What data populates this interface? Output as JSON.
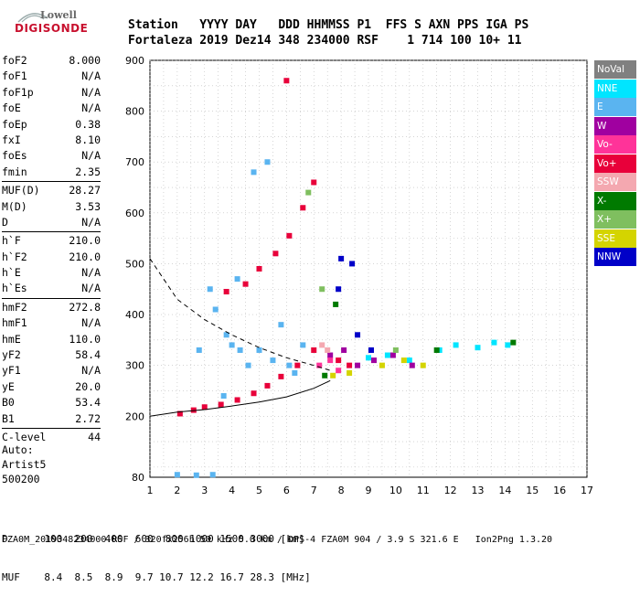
{
  "logo": {
    "line1": "Lowell",
    "line2": "DIGISONDE"
  },
  "header": {
    "line1": "Station   YYYY DAY   DDD HHMMSS P1  FFS S AXN PPS IGA PS",
    "line2": "Fortaleza 2019 Dez14 348 234000 RSF    1 714 100 10+ 11"
  },
  "params": {
    "group1": [
      [
        "foF2",
        "8.000"
      ],
      [
        "foF1",
        "N/A"
      ],
      [
        "foF1p",
        "N/A"
      ],
      [
        "foE",
        "N/A"
      ],
      [
        "foEp",
        "0.38"
      ],
      [
        "fxI",
        "8.10"
      ],
      [
        "foEs",
        "N/A"
      ],
      [
        "fmin",
        "2.35"
      ]
    ],
    "group2": [
      [
        "MUF(D)",
        "28.27"
      ],
      [
        "M(D)",
        "3.53"
      ],
      [
        "D",
        "N/A"
      ]
    ],
    "group3": [
      [
        "h`F",
        "210.0"
      ],
      [
        "h`F2",
        "210.0"
      ],
      [
        "h`E",
        "N/A"
      ],
      [
        "h`Es",
        "N/A"
      ]
    ],
    "group4": [
      [
        "hmF2",
        "272.8"
      ],
      [
        "hmF1",
        "N/A"
      ],
      [
        "hmE",
        "110.0"
      ],
      [
        "yF2",
        "58.4"
      ],
      [
        "yF1",
        "N/A"
      ],
      [
        "yE",
        "20.0"
      ],
      [
        "B0",
        "53.4"
      ],
      [
        "B1",
        "2.72"
      ]
    ],
    "group5": [
      [
        "C-level",
        "44"
      ]
    ]
  },
  "auto": {
    "line1": "Auto:",
    "line2": "Artist5",
    "line3": "500200"
  },
  "legend": [
    {
      "label": "NoVal",
      "color": "#808080"
    },
    {
      "label": "NNE",
      "color": "#00e5ff"
    },
    {
      "label": "E",
      "color": "#5ab4f0"
    },
    {
      "label": "W",
      "color": "#a000a0"
    },
    {
      "label": "Vo-",
      "color": "#ff3399"
    },
    {
      "label": "Vo+",
      "color": "#e8003a"
    },
    {
      "label": "SSW",
      "color": "#f4a8b0"
    },
    {
      "label": "X-",
      "color": "#007a00"
    },
    {
      "label": "X+",
      "color": "#7fbf5f"
    },
    {
      "label": "SSE",
      "color": "#d4d400"
    },
    {
      "label": "NNW",
      "color": "#0000c8"
    }
  ],
  "bottom": {
    "line1": "D      100  200  400  600  800 1000 1500 3000 [km]",
    "line2": "MUF    8.4  8.5  8.9  9.7 10.7 12.2 16.7 28.3 [MHz]"
  },
  "footer": "FZA0M_2019348234000.RSF / 320fx256h 50 kHz 5.0 km / DPS-4 FZA0M 904 / 3.9 S 321.6 E   Ion2Png 1.3.20",
  "chart_data": {
    "type": "scatter",
    "title": "",
    "xlabel": "",
    "ylabel": "",
    "xlim": [
      1,
      17
    ],
    "ylim": [
      80,
      900
    ],
    "xticks": [
      1,
      2,
      3,
      4,
      5,
      6,
      7,
      8,
      9,
      10,
      11,
      12,
      13,
      14,
      15,
      16,
      17
    ],
    "yticks": [
      80,
      200,
      300,
      400,
      500,
      600,
      700,
      800,
      900
    ],
    "grid": true,
    "legend_position": "right",
    "series": [
      {
        "name": "E",
        "values": [
          [
            2.0,
            85
          ],
          [
            2.7,
            84
          ],
          [
            3.3,
            85
          ],
          [
            3.8,
            360
          ],
          [
            4.0,
            340
          ],
          [
            4.3,
            330
          ],
          [
            3.7,
            240
          ],
          [
            5.0,
            330
          ],
          [
            5.5,
            310
          ],
          [
            6.1,
            300
          ],
          [
            3.2,
            450
          ],
          [
            4.2,
            470
          ],
          [
            4.8,
            680
          ],
          [
            5.3,
            700
          ],
          [
            6.6,
            340
          ],
          [
            2.8,
            330
          ],
          [
            3.4,
            410
          ],
          [
            4.6,
            300
          ],
          [
            5.8,
            380
          ],
          [
            6.3,
            285
          ]
        ]
      },
      {
        "name": "Vo+",
        "values": [
          [
            2.1,
            205
          ],
          [
            2.6,
            212
          ],
          [
            3.0,
            218
          ],
          [
            3.6,
            223
          ],
          [
            4.2,
            232
          ],
          [
            4.8,
            245
          ],
          [
            5.3,
            260
          ],
          [
            5.8,
            278
          ],
          [
            6.4,
            300
          ],
          [
            7.0,
            330
          ],
          [
            3.8,
            445
          ],
          [
            4.5,
            460
          ],
          [
            5.0,
            490
          ],
          [
            5.6,
            520
          ],
          [
            6.1,
            555
          ],
          [
            6.6,
            610
          ],
          [
            7.0,
            660
          ],
          [
            6.0,
            860
          ],
          [
            7.9,
            310
          ],
          [
            8.3,
            300
          ]
        ]
      },
      {
        "name": "NNE",
        "values": [
          [
            9.0,
            315
          ],
          [
            9.7,
            320
          ],
          [
            10.5,
            310
          ],
          [
            11.6,
            330
          ],
          [
            12.2,
            340
          ],
          [
            13.0,
            335
          ],
          [
            13.6,
            345
          ],
          [
            14.1,
            340
          ]
        ]
      },
      {
        "name": "W",
        "values": [
          [
            7.6,
            320
          ],
          [
            8.1,
            330
          ],
          [
            8.6,
            300
          ],
          [
            9.2,
            310
          ],
          [
            9.9,
            320
          ],
          [
            10.6,
            300
          ]
        ]
      },
      {
        "name": "X-",
        "values": [
          [
            7.4,
            280
          ],
          [
            7.8,
            420
          ],
          [
            11.5,
            330
          ],
          [
            14.3,
            345
          ]
        ]
      },
      {
        "name": "X+",
        "values": [
          [
            6.8,
            640
          ],
          [
            7.3,
            450
          ],
          [
            10.0,
            330
          ]
        ]
      },
      {
        "name": "SSE",
        "values": [
          [
            7.7,
            280
          ],
          [
            8.3,
            285
          ],
          [
            9.5,
            300
          ],
          [
            10.3,
            310
          ],
          [
            11.0,
            300
          ]
        ]
      },
      {
        "name": "NNW",
        "values": [
          [
            8.0,
            510
          ],
          [
            8.4,
            500
          ],
          [
            7.9,
            450
          ],
          [
            8.6,
            360
          ],
          [
            9.1,
            330
          ]
        ]
      },
      {
        "name": "Vo-",
        "values": [
          [
            7.2,
            300
          ],
          [
            7.6,
            310
          ],
          [
            7.9,
            290
          ]
        ]
      },
      {
        "name": "SSW",
        "values": [
          [
            7.3,
            340
          ],
          [
            7.5,
            330
          ]
        ]
      }
    ],
    "curves": {
      "profile": [
        [
          1.0,
          200
        ],
        [
          2.0,
          208
        ],
        [
          3.0,
          213
        ],
        [
          4.0,
          220
        ],
        [
          5.0,
          228
        ],
        [
          6.0,
          238
        ],
        [
          7.0,
          255
        ],
        [
          7.6,
          270
        ]
      ],
      "dashed": [
        [
          1.0,
          510
        ],
        [
          2.0,
          430
        ],
        [
          3.0,
          390
        ],
        [
          4.0,
          360
        ],
        [
          5.0,
          335
        ],
        [
          6.0,
          315
        ],
        [
          7.0,
          300
        ],
        [
          7.6,
          290
        ]
      ]
    }
  }
}
